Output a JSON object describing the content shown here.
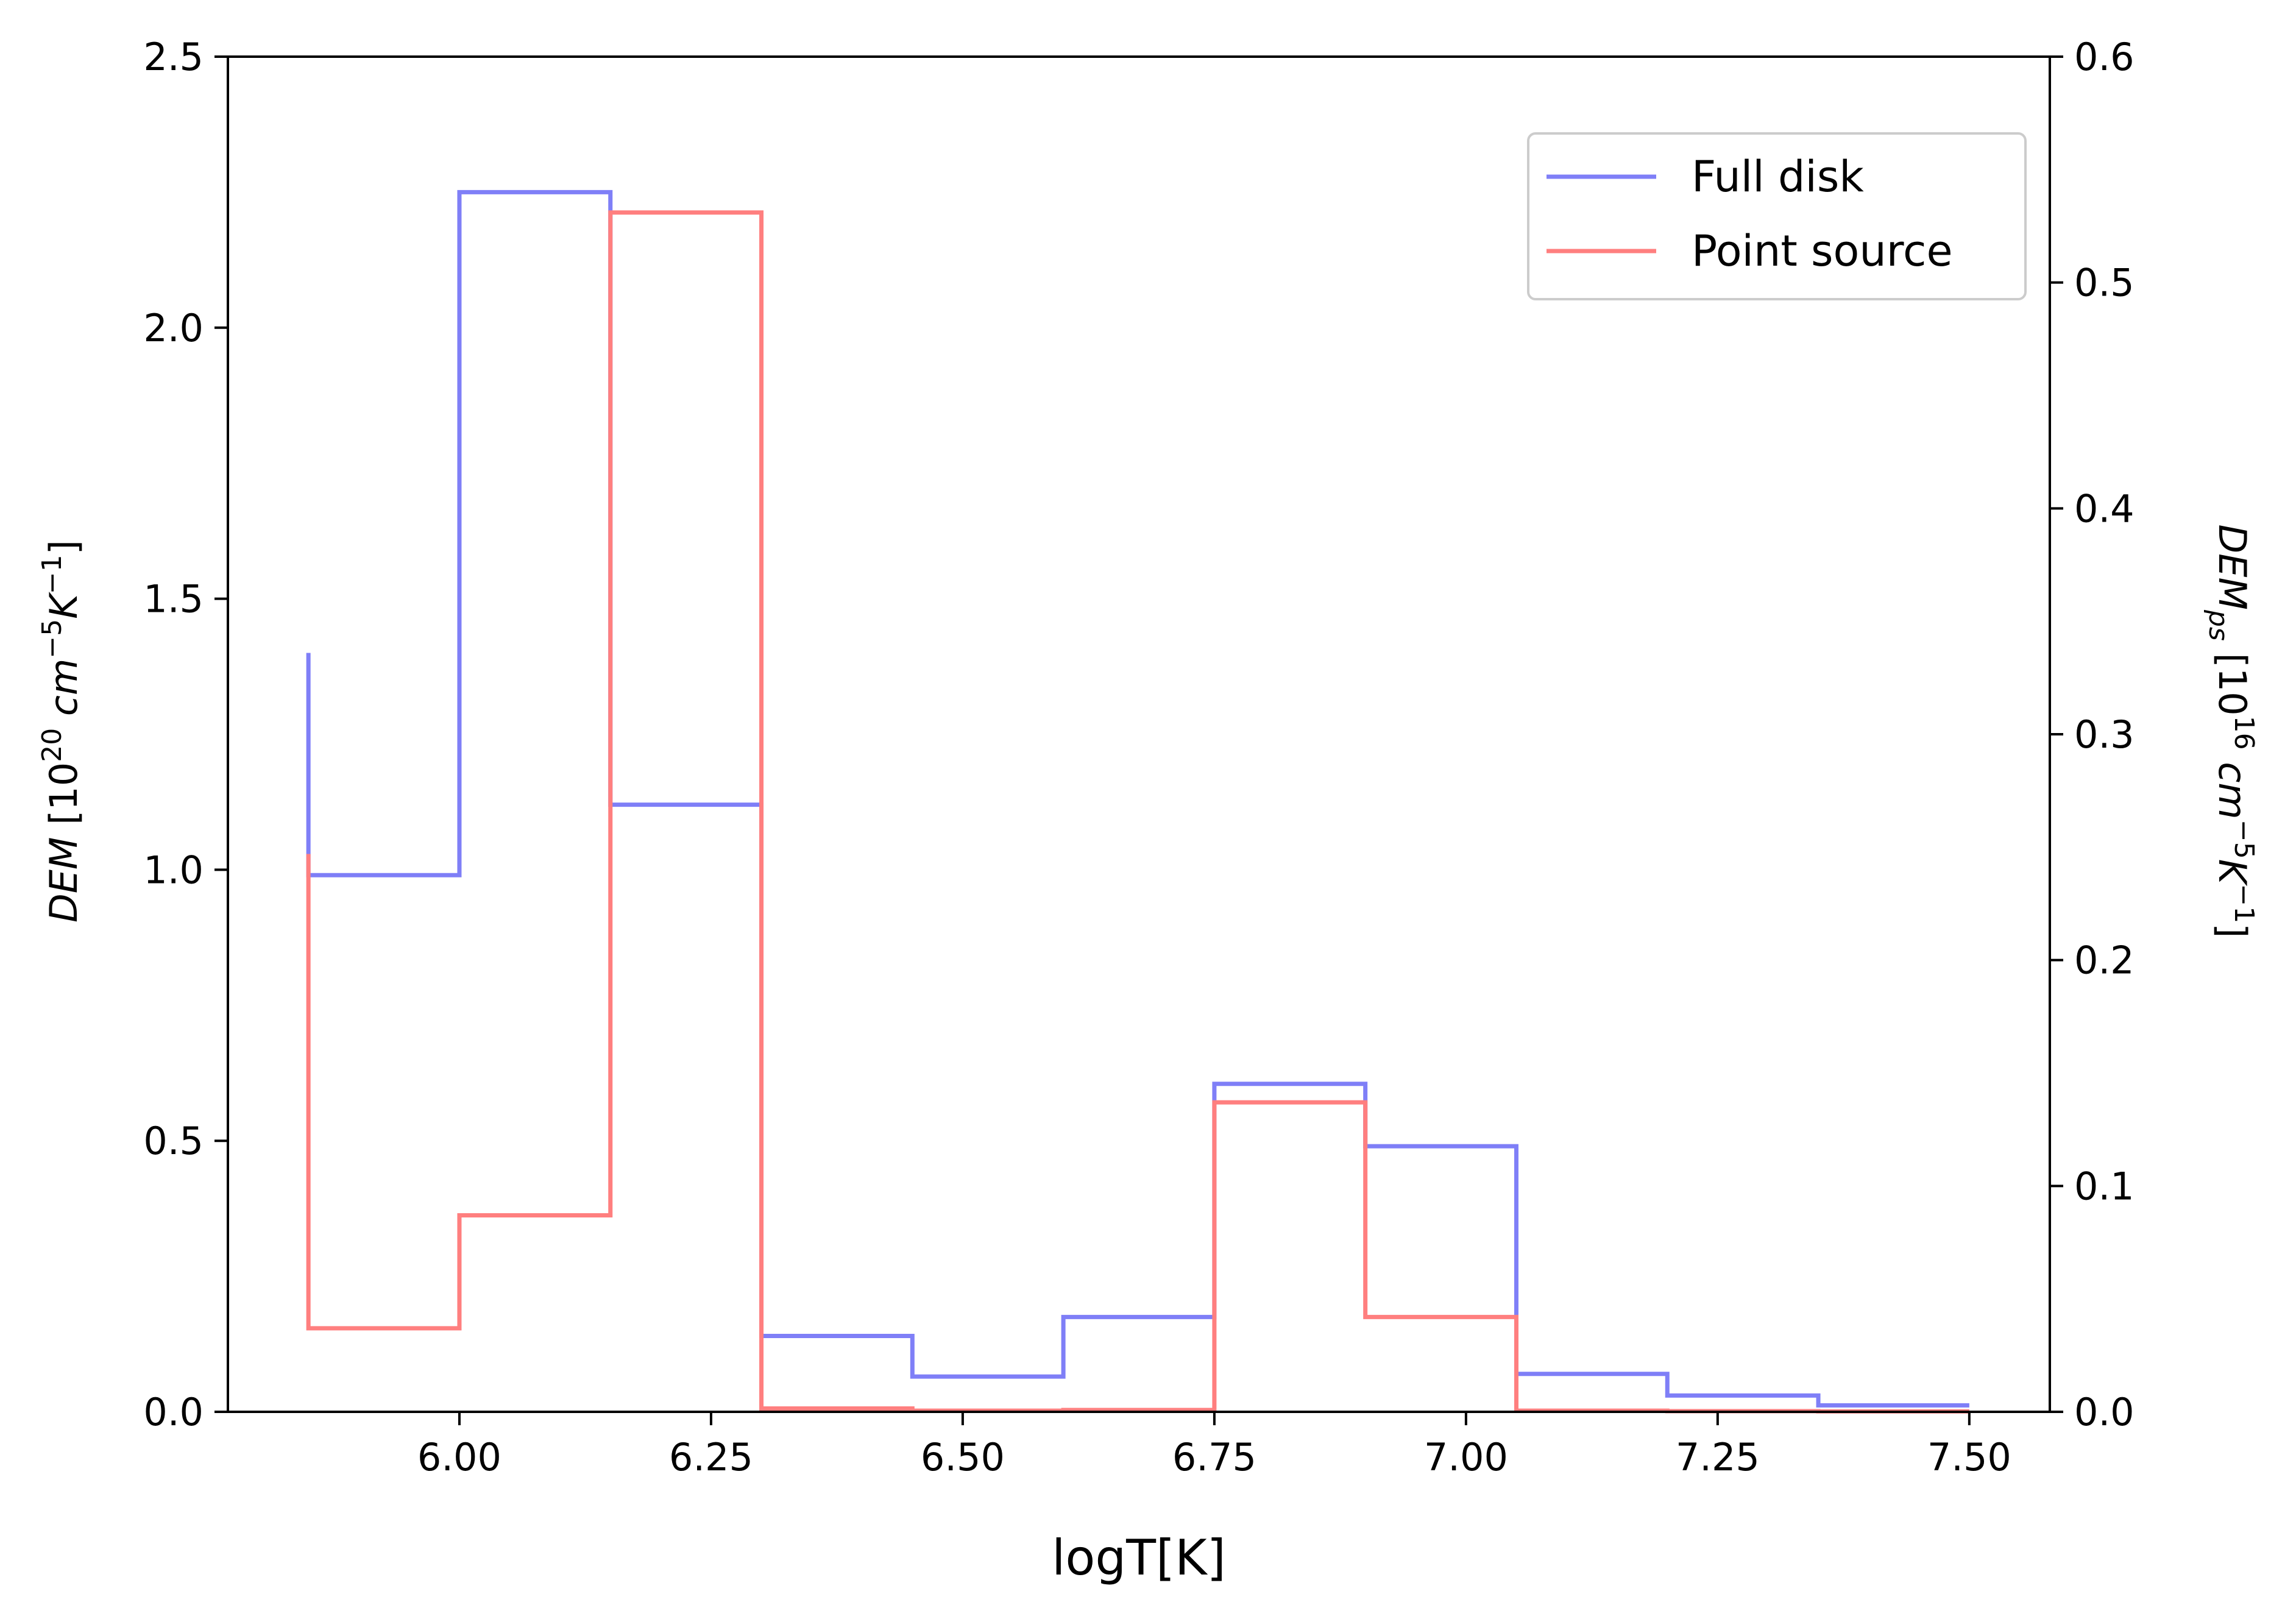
{
  "chart_data": {
    "type": "line",
    "subtype": "step",
    "xlabel": "logT[K]",
    "ylabel": {
      "base": "DEM",
      "bracket_open": " [10",
      "exp": "20",
      "unit1": " cm",
      "exp2": "−5",
      "unit2": "K",
      "exp3": "−1",
      "bracket_close": "]"
    },
    "ylabel_right": {
      "base": "DEM",
      "sub": "ps",
      "bracket_open": " [10",
      "exp": "16",
      "unit1": " cm",
      "exp2": "−5",
      "unit2": "K",
      "exp3": "−1",
      "bracket_close": "]"
    },
    "xlim": [
      5.77,
      7.58
    ],
    "ylim": [
      0,
      2.5
    ],
    "ylim_right": [
      0,
      0.6
    ],
    "x_ticks": [
      "6.00",
      "6.25",
      "6.50",
      "6.75",
      "7.00",
      "7.25",
      "7.50"
    ],
    "y_ticks": [
      "0.0",
      "0.5",
      "1.0",
      "1.5",
      "2.0",
      "2.5"
    ],
    "y_ticks_right": [
      "0.0",
      "0.1",
      "0.2",
      "0.3",
      "0.4",
      "0.5",
      "0.6"
    ],
    "grid": false,
    "legend_position": "top-right",
    "series": [
      {
        "name": "Full disk",
        "axis": "left",
        "color": "#7f7ff7",
        "start": {
          "x": 5.85,
          "y": 1.4
        },
        "steps": [
          {
            "x0": 5.85,
            "x1": 6.0,
            "y": 0.99
          },
          {
            "x0": 6.0,
            "x1": 6.15,
            "y": 2.25
          },
          {
            "x0": 6.15,
            "x1": 6.3,
            "y": 1.12
          },
          {
            "x0": 6.3,
            "x1": 6.45,
            "y": 0.14
          },
          {
            "x0": 6.45,
            "x1": 6.6,
            "y": 0.065
          },
          {
            "x0": 6.6,
            "x1": 6.75,
            "y": 0.175
          },
          {
            "x0": 6.75,
            "x1": 6.9,
            "y": 0.605
          },
          {
            "x0": 6.9,
            "x1": 7.05,
            "y": 0.49
          },
          {
            "x0": 7.05,
            "x1": 7.2,
            "y": 0.07
          },
          {
            "x0": 7.2,
            "x1": 7.35,
            "y": 0.03
          },
          {
            "x0": 7.35,
            "x1": 7.5,
            "y": 0.012
          }
        ]
      },
      {
        "name": "Point source",
        "axis": "right",
        "color": "#ff7f7f",
        "start": {
          "x": 5.85,
          "y": 0.247
        },
        "steps": [
          {
            "x0": 5.85,
            "x1": 6.0,
            "y": 0.037
          },
          {
            "x0": 6.0,
            "x1": 6.15,
            "y": 0.087
          },
          {
            "x0": 6.15,
            "x1": 6.3,
            "y": 0.531
          },
          {
            "x0": 6.3,
            "x1": 6.45,
            "y": 0.0015
          },
          {
            "x0": 6.45,
            "x1": 6.6,
            "y": 0.0005
          },
          {
            "x0": 6.6,
            "x1": 6.75,
            "y": 0.0008
          },
          {
            "x0": 6.75,
            "x1": 6.9,
            "y": 0.137
          },
          {
            "x0": 6.9,
            "x1": 7.05,
            "y": 0.042
          },
          {
            "x0": 7.05,
            "x1": 7.2,
            "y": 0.0005
          },
          {
            "x0": 7.2,
            "x1": 7.35,
            "y": 0.0003
          },
          {
            "x0": 7.35,
            "x1": 7.5,
            "y": 0.0002
          }
        ]
      }
    ]
  }
}
